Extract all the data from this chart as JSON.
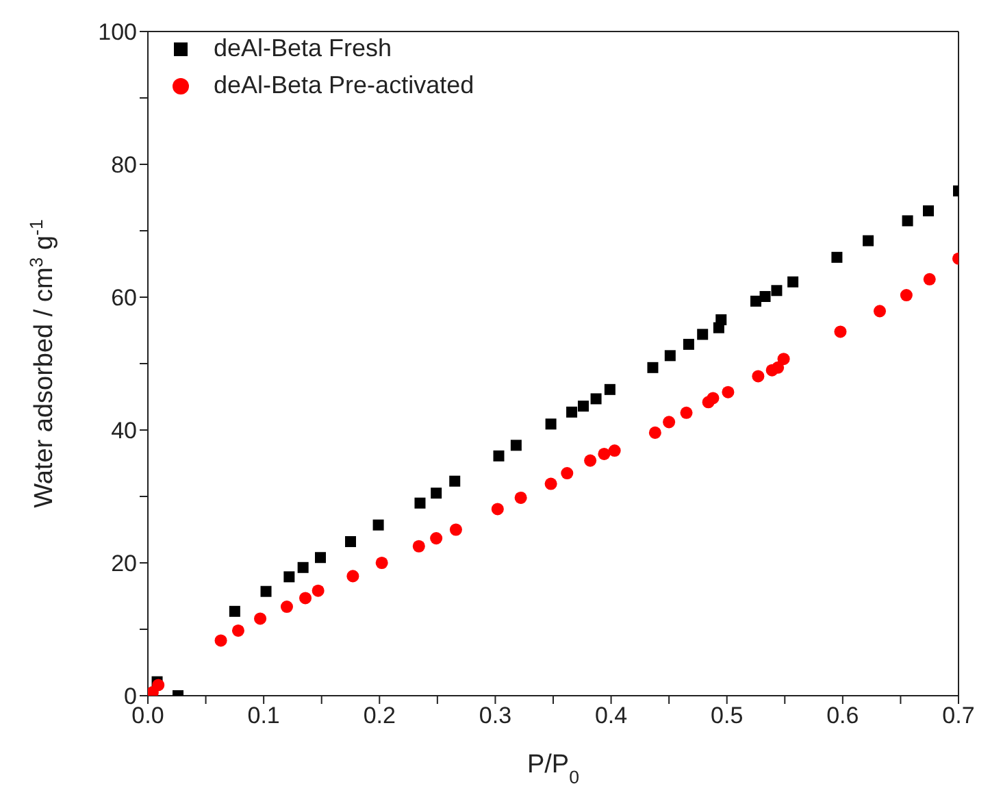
{
  "chart_data": {
    "type": "scatter",
    "xlabel": "P/P$_{0}$",
    "ylabel": "Water adsorbed / cm$^{3}$ g$^{-1}$",
    "xlim": [
      0,
      0.7
    ],
    "ylim": [
      0,
      100
    ],
    "xticks": [
      {
        "value": 0,
        "label": "0.0"
      },
      {
        "value": 0.05,
        "label": null
      },
      {
        "value": 0.1,
        "label": "0.1"
      },
      {
        "value": 0.15,
        "label": null
      },
      {
        "value": 0.2,
        "label": "0.2"
      },
      {
        "value": 0.25,
        "label": null
      },
      {
        "value": 0.3,
        "label": "0.3"
      },
      {
        "value": 0.35,
        "label": null
      },
      {
        "value": 0.4,
        "label": "0.4"
      },
      {
        "value": 0.45,
        "label": null
      },
      {
        "value": 0.5,
        "label": "0.5"
      },
      {
        "value": 0.55,
        "label": null
      },
      {
        "value": 0.6,
        "label": "0.6"
      },
      {
        "value": 0.65,
        "label": null
      },
      {
        "value": 0.7,
        "label": "0.7"
      }
    ],
    "yticks": [
      0,
      {
        "value": 10,
        "label": null
      },
      20,
      {
        "value": 30,
        "label": null
      },
      40,
      {
        "value": 50,
        "label": null
      },
      60,
      {
        "value": 70,
        "label": null
      },
      80,
      {
        "value": 90,
        "label": null
      },
      100
    ],
    "grid": false,
    "legend": "top left",
    "series": [
      {
        "name": "deAl-Beta Fresh",
        "color": "#000000",
        "marker": "square",
        "x": [
          0.008,
          0.026,
          0.075,
          0.102,
          0.122,
          0.134,
          0.149,
          0.175,
          0.199,
          0.235,
          0.249,
          0.265,
          0.303,
          0.318,
          0.348,
          0.366,
          0.376,
          0.387,
          0.399,
          0.436,
          0.451,
          0.467,
          0.479,
          0.493,
          0.495,
          0.525,
          0.533,
          0.543,
          0.557,
          0.595,
          0.622,
          0.656,
          0.674,
          0.7
        ],
        "values": [
          2.1,
          0,
          12.7,
          15.7,
          17.9,
          19.3,
          20.8,
          23.2,
          25.7,
          29.0,
          30.5,
          32.3,
          36.1,
          37.7,
          40.9,
          42.7,
          43.6,
          44.7,
          46.1,
          49.4,
          51.2,
          52.9,
          54.4,
          55.4,
          56.6,
          59.4,
          60.1,
          61.0,
          62.3,
          66.0,
          68.5,
          71.5,
          73.0,
          76.0
        ]
      },
      {
        "name": "deAl-Beta Pre-activated",
        "color": "#ff0000",
        "marker": "circle",
        "x": [
          0.004,
          0.009,
          0.063,
          0.078,
          0.097,
          0.12,
          0.136,
          0.147,
          0.177,
          0.202,
          0.234,
          0.249,
          0.266,
          0.302,
          0.322,
          0.348,
          0.362,
          0.382,
          0.394,
          0.403,
          0.438,
          0.45,
          0.465,
          0.484,
          0.488,
          0.501,
          0.527,
          0.539,
          0.544,
          0.549,
          0.598,
          0.632,
          0.655,
          0.675,
          0.7
        ],
        "values": [
          0.5,
          1.6,
          8.3,
          9.8,
          11.6,
          13.4,
          14.7,
          15.8,
          18.0,
          20.0,
          22.5,
          23.7,
          25.0,
          28.1,
          29.8,
          31.9,
          33.5,
          35.4,
          36.4,
          36.9,
          39.6,
          41.2,
          42.6,
          44.2,
          44.8,
          45.7,
          48.1,
          49.0,
          49.4,
          50.7,
          54.8,
          57.9,
          60.3,
          62.7,
          65.8
        ]
      }
    ]
  }
}
